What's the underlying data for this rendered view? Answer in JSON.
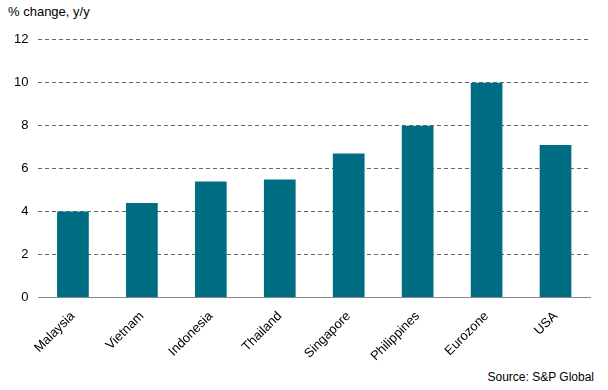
{
  "chart_data": {
    "type": "bar",
    "y_label": "% change, y/y",
    "source": "Source: S&P Global",
    "categories": [
      "Malaysia",
      "Vietnam",
      "Indonesia",
      "Thailand",
      "Singapore",
      "Philippines",
      "Eurozone",
      "USA"
    ],
    "values": [
      4.0,
      4.4,
      5.4,
      5.5,
      6.7,
      8.0,
      10.0,
      7.1
    ],
    "color": "#006e82",
    "ylim": [
      0,
      12
    ],
    "yticks": [
      0,
      2,
      4,
      6,
      8,
      10,
      12
    ],
    "grid": true
  }
}
